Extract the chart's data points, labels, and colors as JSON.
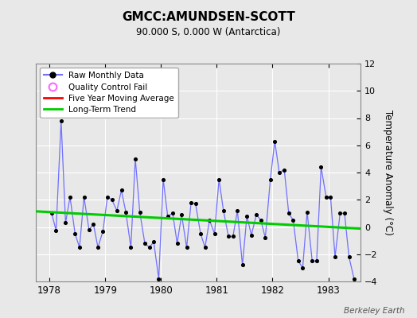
{
  "title": "GMCC:AMUNDSEN-SCOTT",
  "subtitle": "90.000 S, 0.000 W (Antarctica)",
  "ylabel": "Temperature Anomaly (°C)",
  "watermark": "Berkeley Earth",
  "bg_color": "#e8e8e8",
  "plot_bg_color": "#e8e8e8",
  "ylim": [
    -4,
    12
  ],
  "yticks": [
    -4,
    -2,
    0,
    2,
    4,
    6,
    8,
    10,
    12
  ],
  "line_color": "#7070ff",
  "marker_color": "#000000",
  "trend_color": "#00cc00",
  "moving_avg_color": "#ff0000",
  "qc_color": "#ff66ff",
  "xlim_left": 1977.75,
  "xlim_right": 1983.58,
  "x_ticks": [
    1978,
    1979,
    1980,
    1981,
    1982,
    1983
  ],
  "trend_x": [
    1977.75,
    1983.58
  ],
  "trend_y": [
    1.15,
    -0.12
  ],
  "raw_data_x": [
    1978.04,
    1978.12,
    1978.21,
    1978.29,
    1978.37,
    1978.46,
    1978.54,
    1978.62,
    1978.71,
    1978.79,
    1978.87,
    1978.96,
    1979.04,
    1979.12,
    1979.21,
    1979.29,
    1979.37,
    1979.46,
    1979.54,
    1979.62,
    1979.71,
    1979.79,
    1979.87,
    1979.96,
    1980.04,
    1980.12,
    1980.21,
    1980.29,
    1980.37,
    1980.46,
    1980.54,
    1980.62,
    1980.71,
    1980.79,
    1980.87,
    1980.96,
    1981.04,
    1981.12,
    1981.21,
    1981.29,
    1981.37,
    1981.46,
    1981.54,
    1981.62,
    1981.71,
    1981.79,
    1981.87,
    1981.96,
    1982.04,
    1982.12,
    1982.21,
    1982.29,
    1982.37,
    1982.46,
    1982.54,
    1982.62,
    1982.71,
    1982.79,
    1982.87,
    1982.96,
    1983.04,
    1983.12,
    1983.21,
    1983.29,
    1983.37,
    1983.46
  ],
  "raw_data_y": [
    1.0,
    -0.25,
    7.8,
    0.3,
    2.2,
    -0.5,
    -1.5,
    2.2,
    -0.2,
    0.2,
    -1.5,
    -0.3,
    2.2,
    2.0,
    1.2,
    2.7,
    1.1,
    -1.5,
    5.0,
    1.1,
    -1.2,
    -1.5,
    -1.1,
    -3.8,
    3.5,
    0.8,
    1.0,
    -1.2,
    0.9,
    -1.5,
    1.8,
    1.7,
    -0.5,
    -1.5,
    0.5,
    -0.5,
    3.5,
    1.2,
    -0.7,
    -0.7,
    1.2,
    -2.8,
    0.8,
    -0.6,
    0.9,
    0.5,
    -0.8,
    3.5,
    6.3,
    4.0,
    4.2,
    1.0,
    0.5,
    -2.5,
    -3.0,
    1.1,
    -2.5,
    -2.5,
    4.4,
    2.2,
    2.2,
    -2.2,
    1.0,
    1.0,
    -2.2,
    -3.8
  ]
}
